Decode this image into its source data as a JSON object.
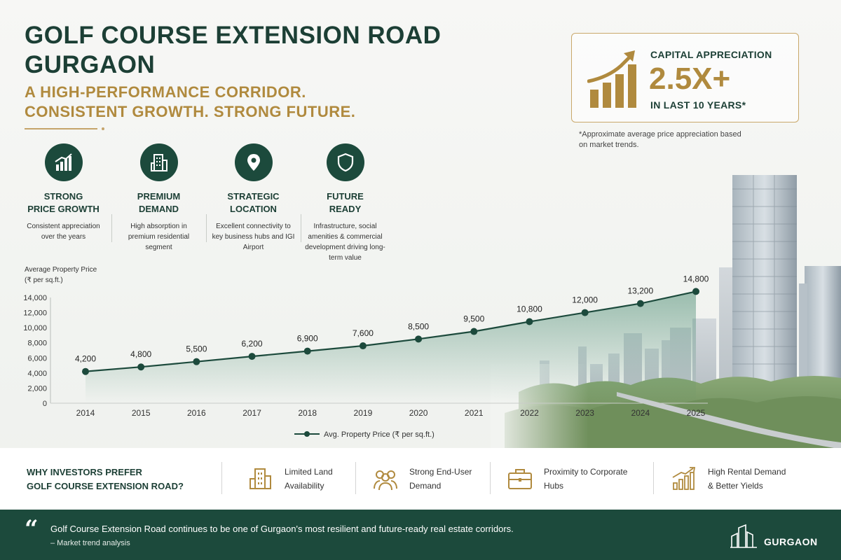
{
  "header": {
    "title_lines": [
      "GOLF COURSE EXTENSION ROAD",
      "GURGAON"
    ],
    "subtitle_lines": [
      "A HIGH-PERFORMANCE CORRIDOR.",
      "CONSISTENT GROWTH. STRONG FUTURE."
    ]
  },
  "capital_appreciation": {
    "label": "CAPITAL APPRECIATION",
    "value": "2.5X+",
    "period": "IN LAST 10 YEARS*",
    "note": "*Approximate average price appreciation based on market trends."
  },
  "features": [
    {
      "icon": "bar-chart-growth-icon",
      "title_lines": [
        "STRONG",
        "PRICE GROWTH"
      ],
      "desc": "Consistent appreciation over the years"
    },
    {
      "icon": "building-icon",
      "title_lines": [
        "PREMIUM",
        "DEMAND"
      ],
      "desc": "High absorption in premium residential segment"
    },
    {
      "icon": "location-pin-icon",
      "title_lines": [
        "STRATEGIC",
        "LOCATION"
      ],
      "desc": "Excellent connectivity to key business hubs and IGI Airport"
    },
    {
      "icon": "shield-icon",
      "title_lines": [
        "FUTURE",
        "READY"
      ],
      "desc": "Infrastructure, social amenities & commercial development driving long-term value"
    }
  ],
  "chart_data": {
    "type": "line",
    "ylabel_lines": [
      "Average Property Price",
      "(₹ per sq.ft.)"
    ],
    "categories": [
      "2014",
      "2015",
      "2016",
      "2017",
      "2018",
      "2019",
      "2020",
      "2021",
      "2022",
      "2023",
      "2024",
      "2025"
    ],
    "series": [
      {
        "name": "Avg. Property Price (₹ per sq.ft.)",
        "values": [
          4200,
          4800,
          5500,
          6200,
          6900,
          7600,
          8500,
          9500,
          10800,
          12000,
          13200,
          14800
        ]
      }
    ],
    "data_labels": [
      "4,200",
      "4,800",
      "5,500",
      "6,200",
      "6,900",
      "7,600",
      "8,500",
      "9,500",
      "10,800",
      "12,000",
      "13,200",
      "14,800"
    ],
    "yticks": [
      0,
      2000,
      4000,
      6000,
      8000,
      10000,
      12000,
      14000
    ],
    "ytick_labels": [
      "0",
      "2,000",
      "4,000",
      "6,000",
      "8,000",
      "10,000",
      "12,000",
      "14,000"
    ],
    "ylim": [
      0,
      14000
    ],
    "line_color": "#1c4a3c",
    "legend_position": "bottom"
  },
  "investors": {
    "title_lines": [
      "WHY INVESTORS PREFER",
      "GOLF COURSE EXTENSION ROAD?"
    ],
    "items": [
      {
        "icon": "building-outline-icon",
        "lines": [
          "Limited Land",
          "Availability"
        ]
      },
      {
        "icon": "people-icon",
        "lines": [
          "Strong End-User",
          "Demand"
        ]
      },
      {
        "icon": "briefcase-icon",
        "lines": [
          "Proximity to Corporate",
          "Hubs"
        ]
      },
      {
        "icon": "rising-bars-icon",
        "lines": [
          "High Rental Demand",
          "& Better Yields"
        ]
      }
    ]
  },
  "footer": {
    "quote_mark": "“",
    "quote": "Golf Course Extension Road continues to be one of Gurgaon's most resilient and future-ready real estate corridors.",
    "source": "– Market trend analysis",
    "brand": "GURGAON"
  },
  "colors": {
    "primary": "#1c4a3c",
    "gold": "#b08a3e",
    "gold_border": "#c9a86a"
  }
}
